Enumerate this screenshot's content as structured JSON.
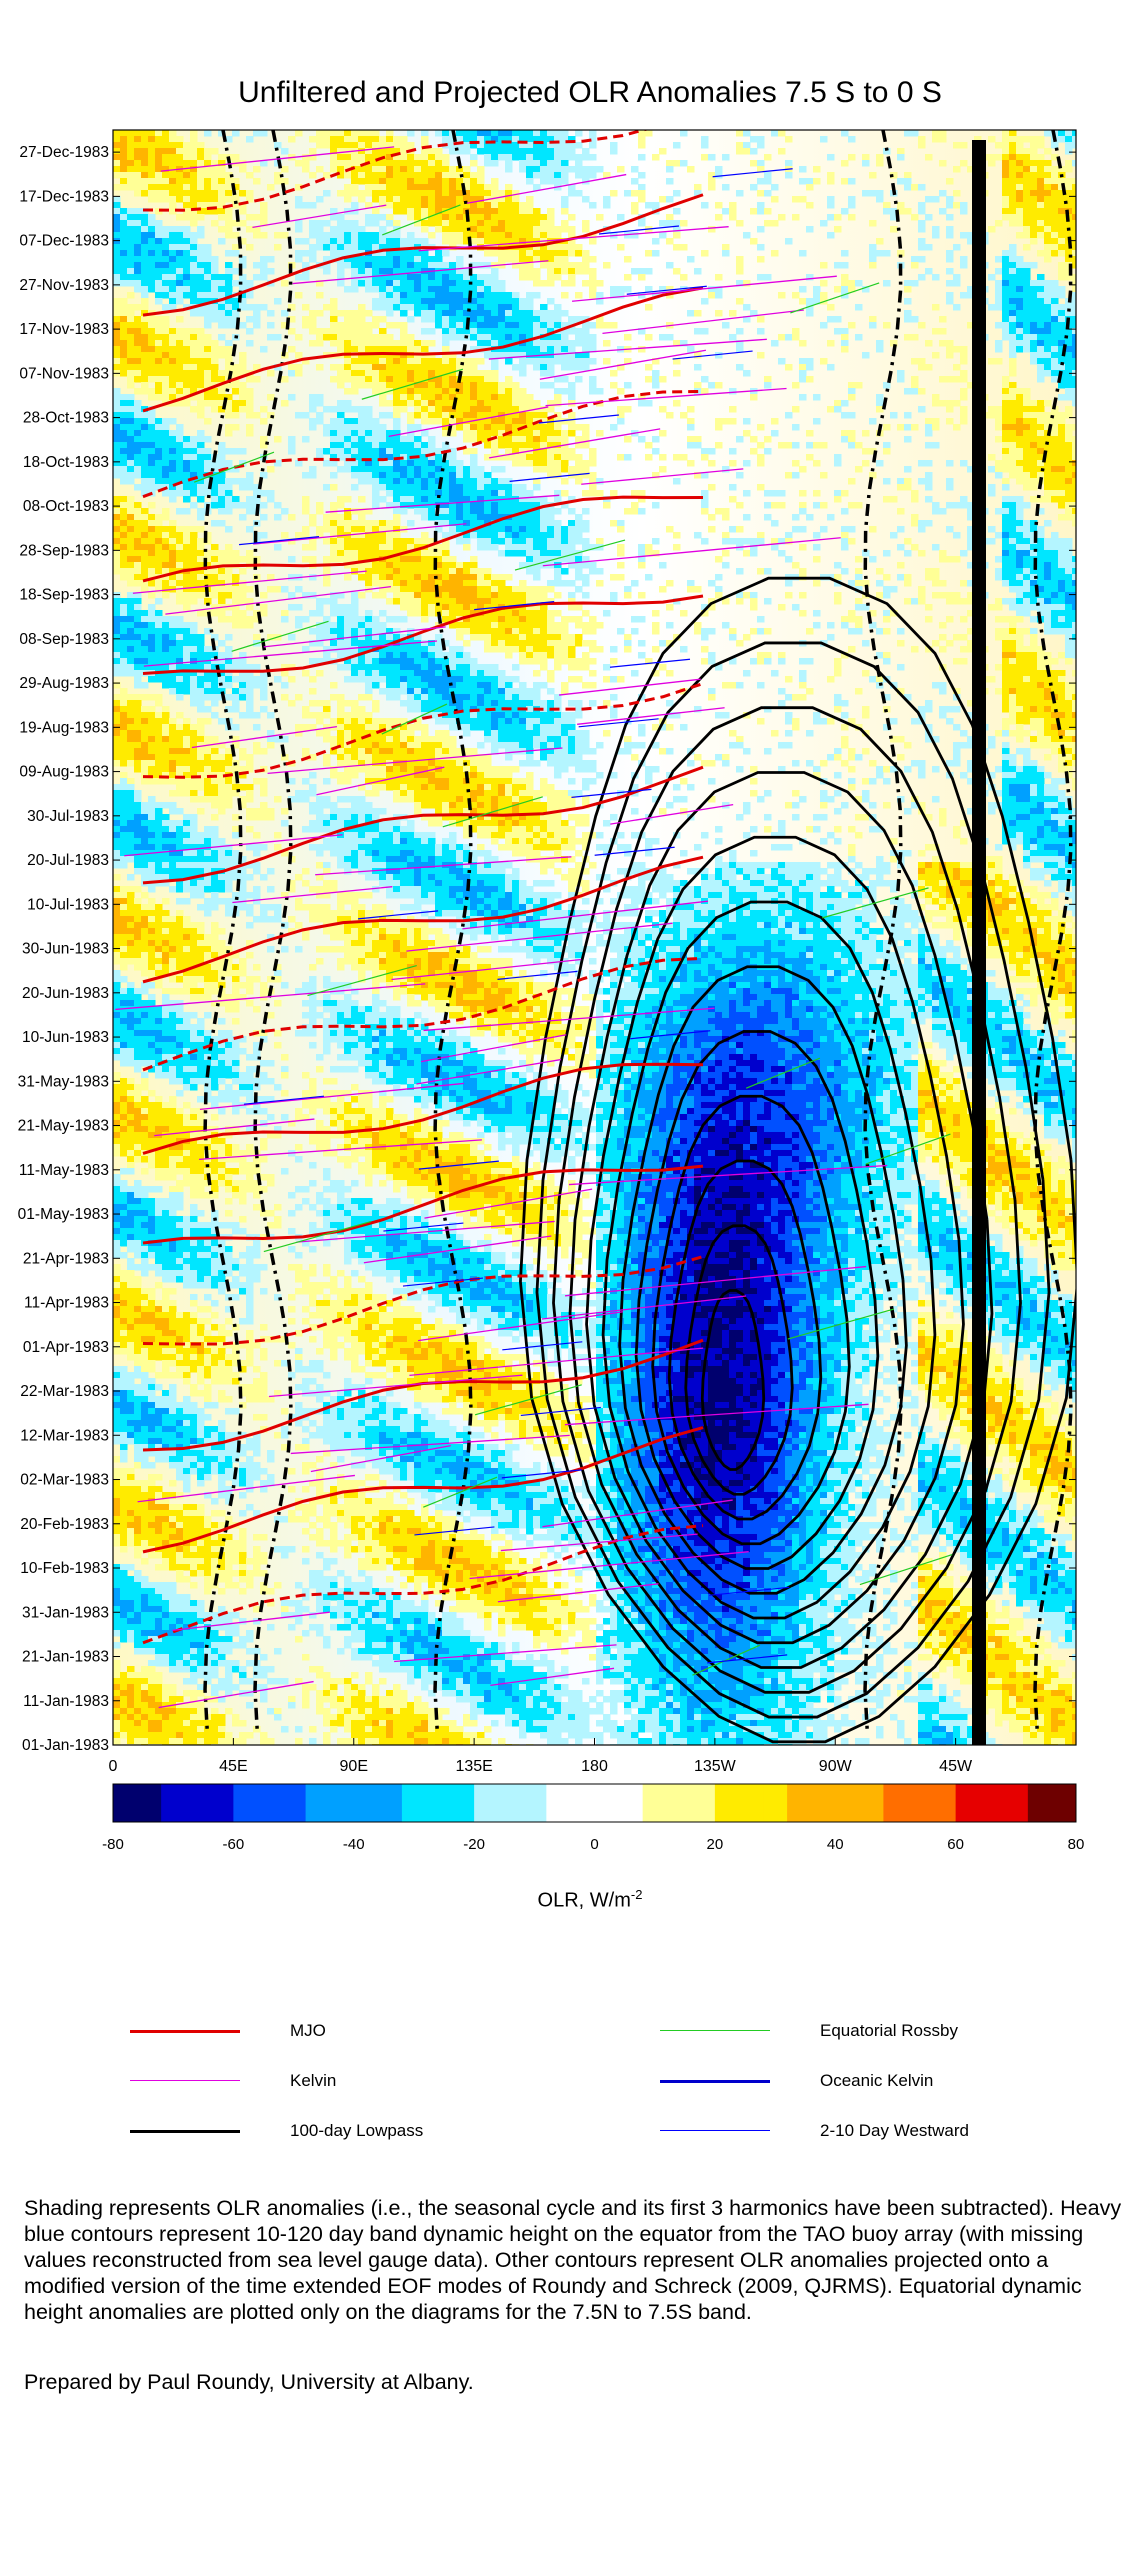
{
  "title": "Unfiltered and Projected OLR Anomalies 7.5 S to 0 S",
  "chart_data": {
    "type": "heatmap",
    "title": "Unfiltered and Projected OLR Anomalies 7.5 S to 0 S",
    "y_axis": {
      "tick_labels": [
        "01-Jan-1983",
        "11-Jan-1983",
        "21-Jan-1983",
        "31-Jan-1983",
        "10-Feb-1983",
        "20-Feb-1983",
        "02-Mar-1983",
        "12-Mar-1983",
        "22-Mar-1983",
        "01-Apr-1983",
        "11-Apr-1983",
        "21-Apr-1983",
        "01-May-1983",
        "11-May-1983",
        "21-May-1983",
        "31-May-1983",
        "10-Jun-1983",
        "20-Jun-1983",
        "30-Jun-1983",
        "10-Jul-1983",
        "20-Jul-1983",
        "30-Jul-1983",
        "09-Aug-1983",
        "19-Aug-1983",
        "29-Aug-1983",
        "08-Sep-1983",
        "18-Sep-1983",
        "28-Sep-1983",
        "08-Oct-1983",
        "18-Oct-1983",
        "28-Oct-1983",
        "07-Nov-1983",
        "17-Nov-1983",
        "27-Nov-1983",
        "07-Dec-1983",
        "17-Dec-1983",
        "27-Dec-1983"
      ],
      "range": [
        "01-Jan-1983",
        "31-Dec-1983"
      ]
    },
    "x_axis": {
      "tick_labels": [
        "0",
        "45E",
        "90E",
        "135E",
        "180",
        "135W",
        "90W",
        "45W"
      ],
      "range_deg_east": [
        0,
        360
      ]
    },
    "colorbar": {
      "ticks": [
        "-80",
        "-60",
        "-40",
        "-20",
        "0",
        "20",
        "40",
        "60",
        "80"
      ],
      "range": [
        -80,
        80
      ],
      "unit_label": "OLR, W/m",
      "unit_superscript": "-2",
      "colors": [
        "#00006e",
        "#0000cd",
        "#0050ff",
        "#00a0ff",
        "#00e6ff",
        "#b4f5ff",
        "#ffffff",
        "#ffff96",
        "#ffeb00",
        "#ffb400",
        "#ff6e00",
        "#e60000",
        "#6e0000"
      ]
    },
    "series": [
      {
        "name": "MJO",
        "color": "#e00000"
      },
      {
        "name": "Equatorial Rossby",
        "color": "#22cc22"
      },
      {
        "name": "Kelvin",
        "color": "#e000e0"
      },
      {
        "name": "Oceanic Kelvin",
        "color": "#0000cc"
      },
      {
        "name": "100-day Lowpass",
        "color": "#000000"
      },
      {
        "name": "2-10 Day Westward",
        "color": "#0000ff"
      }
    ]
  },
  "legend": [
    {
      "label": "MJO",
      "color": "#e00000",
      "width": 3
    },
    {
      "label": "Equatorial Rossby",
      "color": "#22cc22",
      "width": 1.5
    },
    {
      "label": "Kelvin",
      "color": "#e000e0",
      "width": 1.5
    },
    {
      "label": "Oceanic Kelvin",
      "color": "#0000cc",
      "width": 3
    },
    {
      "label": "100-day Lowpass",
      "color": "#000000",
      "width": 3
    },
    {
      "label": "2-10 Day Westward",
      "color": "#0000ff",
      "width": 1.5
    }
  ],
  "caption": "Shading represents OLR anomalies (i.e., the seasonal cycle and its first 3 harmonics have been subtracted). Heavy blue contours represent 10-120 day band dynamic height on the equator from the TAO buoy array (with missing values reconstructed from sea level gauge data). Other contours represent OLR anomalies projected onto a modified version of the time extended EOF modes of Roundy and Schreck (2009, QJRMS). Equatorial dynamic height anomalies are plotted only on the diagrams for the 7.5N to 7.5S band.",
  "credit": "Prepared by Paul Roundy, University at Albany."
}
